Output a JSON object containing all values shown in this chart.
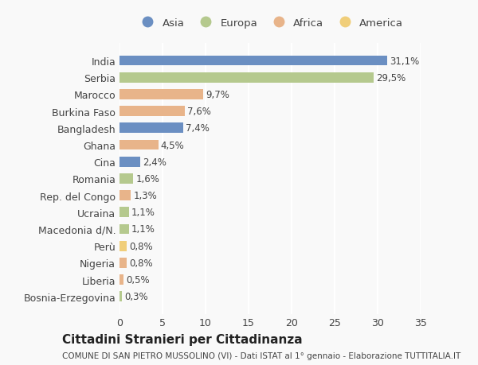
{
  "categories": [
    "India",
    "Serbia",
    "Marocco",
    "Burkina Faso",
    "Bangladesh",
    "Ghana",
    "Cina",
    "Romania",
    "Rep. del Congo",
    "Ucraina",
    "Macedonia d/N.",
    "Perù",
    "Nigeria",
    "Liberia",
    "Bosnia-Erzegovina"
  ],
  "values": [
    31.1,
    29.5,
    9.7,
    7.6,
    7.4,
    4.5,
    2.4,
    1.6,
    1.3,
    1.1,
    1.1,
    0.8,
    0.8,
    0.5,
    0.3
  ],
  "labels": [
    "31,1%",
    "29,5%",
    "9,7%",
    "7,6%",
    "7,4%",
    "4,5%",
    "2,4%",
    "1,6%",
    "1,3%",
    "1,1%",
    "1,1%",
    "0,8%",
    "0,8%",
    "0,5%",
    "0,3%"
  ],
  "continents": [
    "Asia",
    "Europa",
    "Africa",
    "Africa",
    "Asia",
    "Africa",
    "Asia",
    "Europa",
    "Africa",
    "Europa",
    "Europa",
    "America",
    "Africa",
    "Africa",
    "Europa"
  ],
  "colors": {
    "Asia": "#6b8fc2",
    "Europa": "#b5c98e",
    "Africa": "#e8b48a",
    "America": "#f0ce7a"
  },
  "legend_order": [
    "Asia",
    "Europa",
    "Africa",
    "America"
  ],
  "title": "Cittadini Stranieri per Cittadinanza",
  "subtitle": "COMUNE DI SAN PIETRO MUSSOLINO (VI) - Dati ISTAT al 1° gennaio - Elaborazione TUTTITALIA.IT",
  "xlim": [
    0,
    35
  ],
  "xticks": [
    0,
    5,
    10,
    15,
    20,
    25,
    30,
    35
  ],
  "background_color": "#f9f9f9",
  "grid_color": "#ffffff"
}
